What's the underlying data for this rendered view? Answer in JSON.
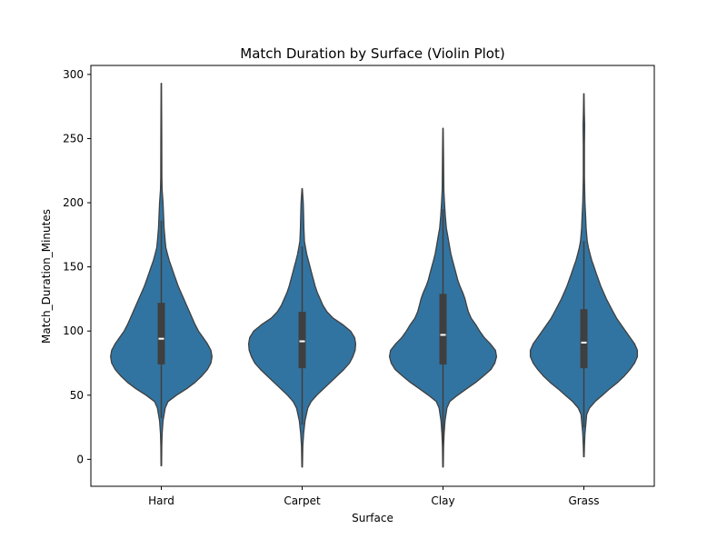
{
  "chart_data": {
    "type": "violin",
    "title": "Match Duration by Surface (Violin Plot)",
    "xlabel": "Surface",
    "ylabel": "Match_Duration_Minutes",
    "categories": [
      "Hard",
      "Carpet",
      "Clay",
      "Grass"
    ],
    "ylim": [
      -21,
      307
    ],
    "yticks": [
      0,
      50,
      100,
      150,
      200,
      250,
      300
    ],
    "grid": false,
    "legend": "none",
    "colors": {
      "fill": "#3274a1",
      "edge": "#3f3f3f",
      "box": "#3f3f3f",
      "median": "#ffffff",
      "axis": "#000000"
    },
    "violins": [
      {
        "category": "Hard",
        "min": -5,
        "max": 293,
        "q1": 74,
        "median": 94,
        "q3": 122,
        "whisker_low": 32,
        "whisker_high": 186,
        "profile": [
          [
            -5,
            0.005
          ],
          [
            10,
            0.008
          ],
          [
            20,
            0.015
          ],
          [
            30,
            0.03
          ],
          [
            40,
            0.07
          ],
          [
            45,
            0.12
          ],
          [
            50,
            0.27
          ],
          [
            55,
            0.45
          ],
          [
            60,
            0.6
          ],
          [
            65,
            0.72
          ],
          [
            70,
            0.82
          ],
          [
            75,
            0.88
          ],
          [
            80,
            0.9
          ],
          [
            85,
            0.88
          ],
          [
            90,
            0.82
          ],
          [
            95,
            0.74
          ],
          [
            100,
            0.66
          ],
          [
            105,
            0.6
          ],
          [
            110,
            0.55
          ],
          [
            115,
            0.5
          ],
          [
            120,
            0.45
          ],
          [
            125,
            0.4
          ],
          [
            130,
            0.35
          ],
          [
            135,
            0.3
          ],
          [
            140,
            0.26
          ],
          [
            145,
            0.22
          ],
          [
            150,
            0.18
          ],
          [
            155,
            0.14
          ],
          [
            160,
            0.11
          ],
          [
            165,
            0.08
          ],
          [
            170,
            0.07
          ],
          [
            175,
            0.06
          ],
          [
            180,
            0.05
          ],
          [
            190,
            0.04
          ],
          [
            200,
            0.03
          ],
          [
            210,
            0.015
          ],
          [
            220,
            0.01
          ],
          [
            250,
            0.008
          ],
          [
            293,
            0.004
          ]
        ]
      },
      {
        "category": "Carpet",
        "min": -6,
        "max": 211,
        "q1": 71,
        "median": 92,
        "q3": 115,
        "whisker_low": 27,
        "whisker_high": 166,
        "profile": [
          [
            -6,
            0.005
          ],
          [
            10,
            0.012
          ],
          [
            20,
            0.025
          ],
          [
            30,
            0.05
          ],
          [
            40,
            0.1
          ],
          [
            45,
            0.16
          ],
          [
            50,
            0.26
          ],
          [
            55,
            0.38
          ],
          [
            60,
            0.5
          ],
          [
            65,
            0.62
          ],
          [
            70,
            0.74
          ],
          [
            75,
            0.84
          ],
          [
            80,
            0.9
          ],
          [
            85,
            0.94
          ],
          [
            90,
            0.95
          ],
          [
            95,
            0.93
          ],
          [
            100,
            0.86
          ],
          [
            105,
            0.72
          ],
          [
            110,
            0.55
          ],
          [
            115,
            0.44
          ],
          [
            120,
            0.37
          ],
          [
            125,
            0.32
          ],
          [
            130,
            0.27
          ],
          [
            135,
            0.23
          ],
          [
            140,
            0.2
          ],
          [
            145,
            0.17
          ],
          [
            150,
            0.14
          ],
          [
            155,
            0.11
          ],
          [
            160,
            0.08
          ],
          [
            165,
            0.06
          ],
          [
            170,
            0.04
          ],
          [
            180,
            0.03
          ],
          [
            190,
            0.025
          ],
          [
            200,
            0.02
          ],
          [
            211,
            0.004
          ]
        ]
      },
      {
        "category": "Clay",
        "min": -6,
        "max": 258,
        "q1": 74,
        "median": 97,
        "q3": 129,
        "whisker_low": 9,
        "whisker_high": 195,
        "profile": [
          [
            -6,
            0.005
          ],
          [
            10,
            0.01
          ],
          [
            20,
            0.02
          ],
          [
            30,
            0.035
          ],
          [
            40,
            0.07
          ],
          [
            45,
            0.12
          ],
          [
            50,
            0.26
          ],
          [
            55,
            0.42
          ],
          [
            60,
            0.58
          ],
          [
            65,
            0.72
          ],
          [
            70,
            0.85
          ],
          [
            75,
            0.92
          ],
          [
            80,
            0.95
          ],
          [
            85,
            0.93
          ],
          [
            90,
            0.84
          ],
          [
            95,
            0.73
          ],
          [
            100,
            0.65
          ],
          [
            105,
            0.58
          ],
          [
            110,
            0.5
          ],
          [
            115,
            0.45
          ],
          [
            120,
            0.42
          ],
          [
            125,
            0.39
          ],
          [
            130,
            0.35
          ],
          [
            135,
            0.3
          ],
          [
            140,
            0.26
          ],
          [
            145,
            0.23
          ],
          [
            150,
            0.2
          ],
          [
            155,
            0.17
          ],
          [
            160,
            0.14
          ],
          [
            165,
            0.12
          ],
          [
            170,
            0.1
          ],
          [
            175,
            0.08
          ],
          [
            180,
            0.06
          ],
          [
            185,
            0.05
          ],
          [
            190,
            0.04
          ],
          [
            200,
            0.025
          ],
          [
            210,
            0.015
          ],
          [
            225,
            0.012
          ],
          [
            240,
            0.008
          ],
          [
            258,
            0.004
          ]
        ]
      },
      {
        "category": "Grass",
        "min": 2,
        "max": 285,
        "q1": 71,
        "median": 91,
        "q3": 117,
        "whisker_low": 25,
        "whisker_high": 170,
        "profile": [
          [
            2,
            0.005
          ],
          [
            10,
            0.01
          ],
          [
            20,
            0.02
          ],
          [
            30,
            0.04
          ],
          [
            35,
            0.05
          ],
          [
            40,
            0.1
          ],
          [
            45,
            0.2
          ],
          [
            50,
            0.33
          ],
          [
            55,
            0.46
          ],
          [
            60,
            0.6
          ],
          [
            65,
            0.72
          ],
          [
            70,
            0.82
          ],
          [
            75,
            0.9
          ],
          [
            80,
            0.95
          ],
          [
            85,
            0.95
          ],
          [
            90,
            0.9
          ],
          [
            95,
            0.82
          ],
          [
            100,
            0.74
          ],
          [
            105,
            0.66
          ],
          [
            110,
            0.58
          ],
          [
            115,
            0.52
          ],
          [
            120,
            0.46
          ],
          [
            125,
            0.4
          ],
          [
            130,
            0.35
          ],
          [
            135,
            0.3
          ],
          [
            140,
            0.26
          ],
          [
            145,
            0.22
          ],
          [
            150,
            0.18
          ],
          [
            155,
            0.14
          ],
          [
            160,
            0.11
          ],
          [
            165,
            0.08
          ],
          [
            170,
            0.06
          ],
          [
            175,
            0.05
          ],
          [
            180,
            0.04
          ],
          [
            190,
            0.03
          ],
          [
            200,
            0.02
          ],
          [
            220,
            0.01
          ],
          [
            245,
            0.01
          ],
          [
            260,
            0.015
          ],
          [
            270,
            0.008
          ],
          [
            285,
            0.004
          ]
        ]
      }
    ]
  }
}
